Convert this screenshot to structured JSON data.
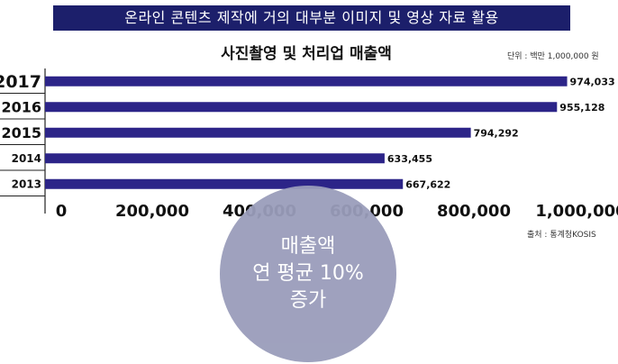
{
  "banner": {
    "text": "온라인 콘텐츠 제작에 거의 대부분 이미지 및 영상 자료 활용"
  },
  "notes": {
    "unit": "단위 : 백만 1,000,000 원",
    "source": "출처 : 통계청KOSIS"
  },
  "bubble": {
    "line1": "매출액",
    "line2": "연 평균 10%",
    "line3": "증가"
  },
  "chart_data": {
    "type": "bar",
    "orientation": "horizontal",
    "title": "사진촬영 및 처리업 매출액",
    "categories": [
      "2017",
      "2016",
      "2015",
      "2014",
      "2013"
    ],
    "values": [
      974033,
      955128,
      794292,
      633455,
      667622
    ],
    "value_labels": [
      "974,033",
      "955,128",
      "794,292",
      "633,455",
      "667,622"
    ],
    "xlim": [
      0,
      1000000
    ],
    "xticks": [
      0,
      200000,
      400000,
      600000,
      800000,
      1000000
    ],
    "xtick_labels": [
      "0",
      "200,000",
      "400,000",
      "600,000",
      "800,000",
      "1,000,000"
    ],
    "bar_color": "#2c2488",
    "grid": false,
    "legend": "none"
  }
}
